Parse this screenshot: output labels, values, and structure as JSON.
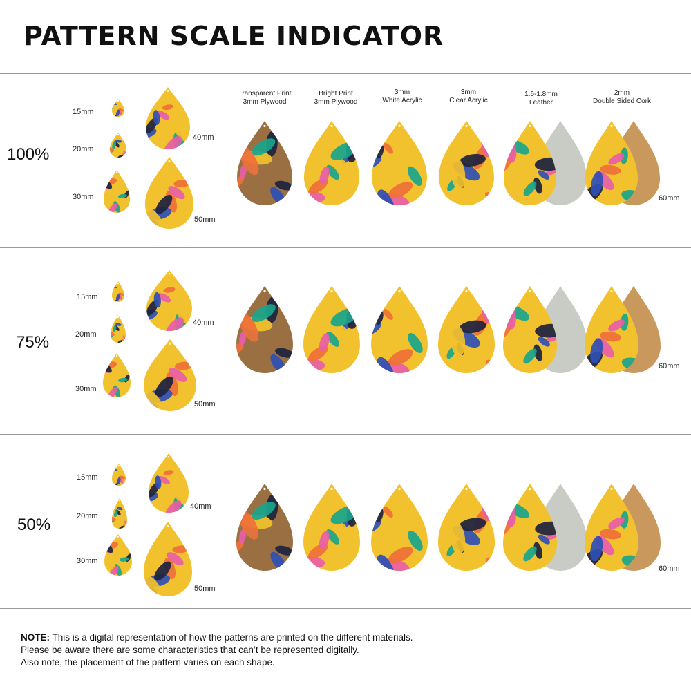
{
  "title": "PATTERN SCALE INDICATOR",
  "materials": [
    {
      "line1": "Transparent Print",
      "line2": "3mm Plywood"
    },
    {
      "line1": "Bright Print",
      "line2": "3mm Plywood"
    },
    {
      "line1": "3mm",
      "line2": "White Acrylic"
    },
    {
      "line1": "3mm",
      "line2": "Clear Acrylic"
    },
    {
      "line1": "1.6-1.8mm",
      "line2": "Leather"
    },
    {
      "line1": "2mm",
      "line2": "Double Sided Cork"
    }
  ],
  "sections": [
    {
      "scale": "100%",
      "sizes": [
        "15mm",
        "20mm",
        "30mm",
        "40mm",
        "50mm"
      ],
      "large_size": "60mm"
    },
    {
      "scale": "75%",
      "sizes": [
        "15mm",
        "20mm",
        "30mm",
        "40mm",
        "50mm"
      ],
      "large_size": "60mm"
    },
    {
      "scale": "50%",
      "sizes": [
        "15mm",
        "20mm",
        "30mm",
        "40mm",
        "50mm"
      ],
      "large_size": "60mm"
    }
  ],
  "note": {
    "label": "NOTE:",
    "line1": "This is a digital representation of how the patterns are printed on the different materials.",
    "line2": "Please be aware there are some characteristics that can’t be represented digitally.",
    "line3": "Also note, the placement of the pattern varies on each shape."
  },
  "colors": {
    "yellow": "#f2c12e",
    "blue": "#2f4fb5",
    "navy": "#1d2340",
    "pink": "#e85ea8",
    "teal": "#19a58c",
    "orange": "#f0703a",
    "wood": "#9a7042",
    "leather_back": "#c9ccc4",
    "cork": "#c9985c"
  }
}
